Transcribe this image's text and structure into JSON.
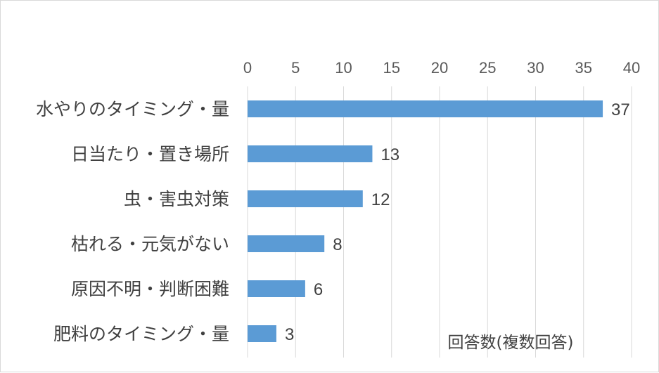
{
  "chart_data": {
    "type": "bar",
    "orientation": "horizontal",
    "categories": [
      "水やりのタイミング・量",
      "日当たり・置き場所",
      "虫・害虫対策",
      "枯れる・元気がない",
      "原因不明・判断困難",
      "肥料のタイミング・量"
    ],
    "values": [
      37,
      13,
      12,
      8,
      6,
      3
    ],
    "xlim": [
      0,
      40
    ],
    "xticks": [
      0,
      5,
      10,
      15,
      20,
      25,
      30,
      35,
      40
    ],
    "xaxis_position": "top",
    "grid": true,
    "bar_color": "#5b9bd5",
    "annotation": "回答数(複数回答)",
    "data_labels": true
  }
}
